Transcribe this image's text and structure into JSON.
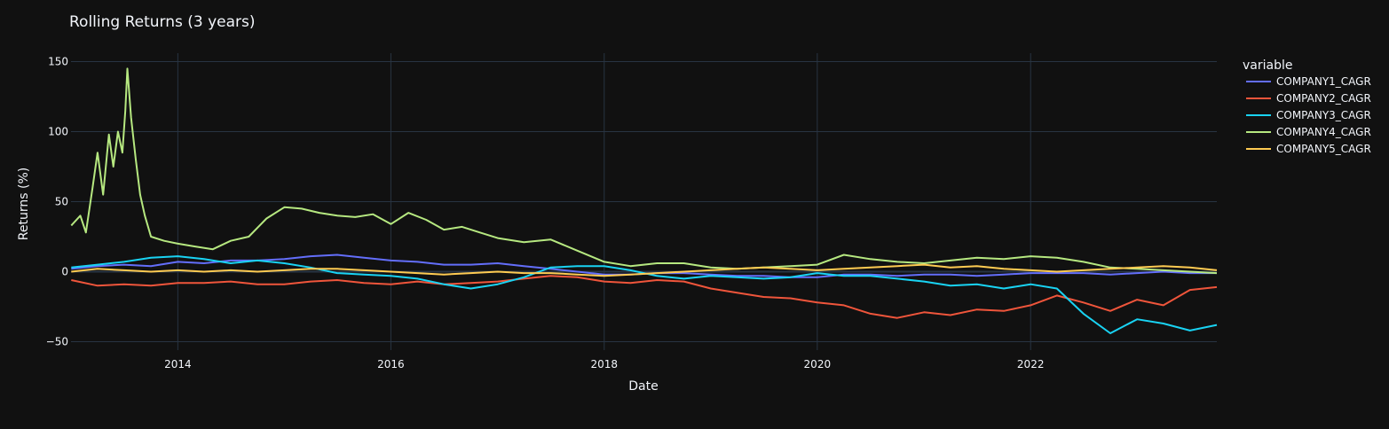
{
  "chart_data": {
    "type": "line",
    "title": "Rolling Returns (3 years)",
    "xlabel": "Date",
    "ylabel": "Returns (%)",
    "x_range": [
      "2012-12-31",
      "2023-10-01"
    ],
    "ylim": [
      -56,
      156
    ],
    "x_ticks": [
      {
        "date": "2014-01-01",
        "label": "2014"
      },
      {
        "date": "2016-01-01",
        "label": "2016"
      },
      {
        "date": "2018-01-01",
        "label": "2018"
      },
      {
        "date": "2020-01-01",
        "label": "2020"
      },
      {
        "date": "2022-01-01",
        "label": "2022"
      }
    ],
    "y_ticks": [
      {
        "value": -50,
        "label": "−50"
      },
      {
        "value": 0,
        "label": "0"
      },
      {
        "value": 50,
        "label": "50"
      },
      {
        "value": 100,
        "label": "100"
      },
      {
        "value": 150,
        "label": "150"
      }
    ],
    "grid": true,
    "legend": {
      "title": "variable",
      "placement": "right"
    },
    "background": "#111111",
    "grid_color": "#283442",
    "series": [
      {
        "name": "COMPANY1_CAGR",
        "color": "#636efa",
        "points": [
          [
            "2013-01-01",
            2
          ],
          [
            "2013-04-01",
            4
          ],
          [
            "2013-07-01",
            5
          ],
          [
            "2013-10-01",
            4
          ],
          [
            "2014-01-01",
            7
          ],
          [
            "2014-04-01",
            6
          ],
          [
            "2014-07-01",
            8
          ],
          [
            "2014-10-01",
            8
          ],
          [
            "2015-01-01",
            9
          ],
          [
            "2015-04-01",
            11
          ],
          [
            "2015-07-01",
            12
          ],
          [
            "2015-10-01",
            10
          ],
          [
            "2016-01-01",
            8
          ],
          [
            "2016-04-01",
            7
          ],
          [
            "2016-07-01",
            5
          ],
          [
            "2016-10-01",
            5
          ],
          [
            "2017-01-01",
            6
          ],
          [
            "2017-04-01",
            4
          ],
          [
            "2017-07-01",
            2
          ],
          [
            "2017-10-01",
            0
          ],
          [
            "2018-01-01",
            -2
          ],
          [
            "2018-04-01",
            -2
          ],
          [
            "2018-07-01",
            -1
          ],
          [
            "2018-10-01",
            -1
          ],
          [
            "2019-01-01",
            -2
          ],
          [
            "2019-04-01",
            -3
          ],
          [
            "2019-07-01",
            -3
          ],
          [
            "2019-10-01",
            -4
          ],
          [
            "2020-01-01",
            -4
          ],
          [
            "2020-04-01",
            -2
          ],
          [
            "2020-07-01",
            -2
          ],
          [
            "2020-10-01",
            -3
          ],
          [
            "2021-01-01",
            -2
          ],
          [
            "2021-04-01",
            -2
          ],
          [
            "2021-07-01",
            -3
          ],
          [
            "2021-10-01",
            -2
          ],
          [
            "2022-01-01",
            -1
          ],
          [
            "2022-04-01",
            -1
          ],
          [
            "2022-07-01",
            -1
          ],
          [
            "2022-10-01",
            -2
          ],
          [
            "2023-01-01",
            -1
          ],
          [
            "2023-04-01",
            0
          ],
          [
            "2023-07-01",
            -1
          ],
          [
            "2023-10-01",
            -1
          ]
        ]
      },
      {
        "name": "COMPANY2_CAGR",
        "color": "#ef553b",
        "points": [
          [
            "2013-01-01",
            -6
          ],
          [
            "2013-04-01",
            -10
          ],
          [
            "2013-07-01",
            -9
          ],
          [
            "2013-10-01",
            -10
          ],
          [
            "2014-01-01",
            -8
          ],
          [
            "2014-04-01",
            -8
          ],
          [
            "2014-07-01",
            -7
          ],
          [
            "2014-10-01",
            -9
          ],
          [
            "2015-01-01",
            -9
          ],
          [
            "2015-04-01",
            -7
          ],
          [
            "2015-07-01",
            -6
          ],
          [
            "2015-10-01",
            -8
          ],
          [
            "2016-01-01",
            -9
          ],
          [
            "2016-04-01",
            -7
          ],
          [
            "2016-07-01",
            -9
          ],
          [
            "2016-10-01",
            -8
          ],
          [
            "2017-01-01",
            -7
          ],
          [
            "2017-04-01",
            -5
          ],
          [
            "2017-07-01",
            -3
          ],
          [
            "2017-10-01",
            -4
          ],
          [
            "2018-01-01",
            -7
          ],
          [
            "2018-04-01",
            -8
          ],
          [
            "2018-07-01",
            -6
          ],
          [
            "2018-10-01",
            -7
          ],
          [
            "2019-01-01",
            -12
          ],
          [
            "2019-04-01",
            -15
          ],
          [
            "2019-07-01",
            -18
          ],
          [
            "2019-10-01",
            -19
          ],
          [
            "2020-01-01",
            -22
          ],
          [
            "2020-04-01",
            -24
          ],
          [
            "2020-07-01",
            -30
          ],
          [
            "2020-10-01",
            -33
          ],
          [
            "2021-01-01",
            -29
          ],
          [
            "2021-04-01",
            -31
          ],
          [
            "2021-07-01",
            -27
          ],
          [
            "2021-10-01",
            -28
          ],
          [
            "2022-01-01",
            -24
          ],
          [
            "2022-04-01",
            -17
          ],
          [
            "2022-07-01",
            -22
          ],
          [
            "2022-10-01",
            -28
          ],
          [
            "2023-01-01",
            -20
          ],
          [
            "2023-04-01",
            -24
          ],
          [
            "2023-07-01",
            -13
          ],
          [
            "2023-10-01",
            -11
          ]
        ]
      },
      {
        "name": "COMPANY3_CAGR",
        "color": "#19d3f3",
        "points": [
          [
            "2013-01-01",
            3
          ],
          [
            "2013-04-01",
            5
          ],
          [
            "2013-07-01",
            7
          ],
          [
            "2013-10-01",
            10
          ],
          [
            "2014-01-01",
            11
          ],
          [
            "2014-04-01",
            9
          ],
          [
            "2014-07-01",
            6
          ],
          [
            "2014-10-01",
            8
          ],
          [
            "2015-01-01",
            6
          ],
          [
            "2015-04-01",
            3
          ],
          [
            "2015-07-01",
            -1
          ],
          [
            "2015-10-01",
            -2
          ],
          [
            "2016-01-01",
            -3
          ],
          [
            "2016-04-01",
            -5
          ],
          [
            "2016-07-01",
            -9
          ],
          [
            "2016-10-01",
            -12
          ],
          [
            "2017-01-01",
            -9
          ],
          [
            "2017-04-01",
            -4
          ],
          [
            "2017-07-01",
            3
          ],
          [
            "2017-10-01",
            4
          ],
          [
            "2018-01-01",
            4
          ],
          [
            "2018-04-01",
            1
          ],
          [
            "2018-07-01",
            -3
          ],
          [
            "2018-10-01",
            -5
          ],
          [
            "2019-01-01",
            -3
          ],
          [
            "2019-04-01",
            -4
          ],
          [
            "2019-07-01",
            -5
          ],
          [
            "2019-10-01",
            -4
          ],
          [
            "2020-01-01",
            -1
          ],
          [
            "2020-04-01",
            -3
          ],
          [
            "2020-07-01",
            -3
          ],
          [
            "2020-10-01",
            -5
          ],
          [
            "2021-01-01",
            -7
          ],
          [
            "2021-04-01",
            -10
          ],
          [
            "2021-07-01",
            -9
          ],
          [
            "2021-10-01",
            -12
          ],
          [
            "2022-01-01",
            -9
          ],
          [
            "2022-04-01",
            -12
          ],
          [
            "2022-07-01",
            -30
          ],
          [
            "2022-10-01",
            -44
          ],
          [
            "2023-01-01",
            -34
          ],
          [
            "2023-04-01",
            -37
          ],
          [
            "2023-07-01",
            -42
          ],
          [
            "2023-10-01",
            -38
          ]
        ]
      },
      {
        "name": "COMPANY4_CAGR",
        "color": "#b6e880",
        "points": [
          [
            "2013-01-01",
            33
          ],
          [
            "2013-02-01",
            40
          ],
          [
            "2013-02-20",
            28
          ],
          [
            "2013-03-15",
            60
          ],
          [
            "2013-04-01",
            85
          ],
          [
            "2013-04-20",
            55
          ],
          [
            "2013-05-10",
            98
          ],
          [
            "2013-05-25",
            75
          ],
          [
            "2013-06-10",
            100
          ],
          [
            "2013-06-25",
            85
          ],
          [
            "2013-07-05",
            115
          ],
          [
            "2013-07-12",
            145
          ],
          [
            "2013-07-25",
            110
          ],
          [
            "2013-08-10",
            80
          ],
          [
            "2013-08-25",
            55
          ],
          [
            "2013-09-10",
            40
          ],
          [
            "2013-10-01",
            25
          ],
          [
            "2013-11-15",
            22
          ],
          [
            "2014-01-01",
            20
          ],
          [
            "2014-03-01",
            18
          ],
          [
            "2014-05-01",
            16
          ],
          [
            "2014-07-01",
            22
          ],
          [
            "2014-09-01",
            25
          ],
          [
            "2014-11-01",
            38
          ],
          [
            "2015-01-01",
            46
          ],
          [
            "2015-03-01",
            45
          ],
          [
            "2015-05-01",
            42
          ],
          [
            "2015-07-01",
            40
          ],
          [
            "2015-09-01",
            39
          ],
          [
            "2015-11-01",
            41
          ],
          [
            "2016-01-01",
            34
          ],
          [
            "2016-03-01",
            42
          ],
          [
            "2016-05-01",
            37
          ],
          [
            "2016-07-01",
            30
          ],
          [
            "2016-09-01",
            32
          ],
          [
            "2016-11-01",
            28
          ],
          [
            "2017-01-01",
            24
          ],
          [
            "2017-04-01",
            21
          ],
          [
            "2017-07-01",
            23
          ],
          [
            "2017-10-01",
            15
          ],
          [
            "2018-01-01",
            7
          ],
          [
            "2018-04-01",
            4
          ],
          [
            "2018-07-01",
            6
          ],
          [
            "2018-10-01",
            6
          ],
          [
            "2019-01-01",
            3
          ],
          [
            "2019-04-01",
            2
          ],
          [
            "2019-07-01",
            3
          ],
          [
            "2019-10-01",
            4
          ],
          [
            "2020-01-01",
            5
          ],
          [
            "2020-04-01",
            12
          ],
          [
            "2020-07-01",
            9
          ],
          [
            "2020-10-01",
            7
          ],
          [
            "2021-01-01",
            6
          ],
          [
            "2021-04-01",
            8
          ],
          [
            "2021-07-01",
            10
          ],
          [
            "2021-10-01",
            9
          ],
          [
            "2022-01-01",
            11
          ],
          [
            "2022-04-01",
            10
          ],
          [
            "2022-07-01",
            7
          ],
          [
            "2022-10-01",
            3
          ],
          [
            "2023-01-01",
            2
          ],
          [
            "2023-04-01",
            1
          ],
          [
            "2023-07-01",
            0
          ],
          [
            "2023-10-01",
            -1
          ]
        ]
      },
      {
        "name": "COMPANY5_CAGR",
        "color": "#fecb52",
        "points": [
          [
            "2013-01-01",
            0
          ],
          [
            "2013-04-01",
            2
          ],
          [
            "2013-07-01",
            1
          ],
          [
            "2013-10-01",
            0
          ],
          [
            "2014-01-01",
            1
          ],
          [
            "2014-04-01",
            0
          ],
          [
            "2014-07-01",
            1
          ],
          [
            "2014-10-01",
            0
          ],
          [
            "2015-01-01",
            1
          ],
          [
            "2015-04-01",
            2
          ],
          [
            "2015-07-01",
            2
          ],
          [
            "2015-10-01",
            1
          ],
          [
            "2016-01-01",
            0
          ],
          [
            "2016-04-01",
            -1
          ],
          [
            "2016-07-01",
            -2
          ],
          [
            "2016-10-01",
            -1
          ],
          [
            "2017-01-01",
            0
          ],
          [
            "2017-04-01",
            -1
          ],
          [
            "2017-07-01",
            -1
          ],
          [
            "2017-10-01",
            -2
          ],
          [
            "2018-01-01",
            -3
          ],
          [
            "2018-04-01",
            -2
          ],
          [
            "2018-07-01",
            -1
          ],
          [
            "2018-10-01",
            0
          ],
          [
            "2019-01-01",
            1
          ],
          [
            "2019-04-01",
            2
          ],
          [
            "2019-07-01",
            3
          ],
          [
            "2019-10-01",
            2
          ],
          [
            "2020-01-01",
            1
          ],
          [
            "2020-04-01",
            2
          ],
          [
            "2020-07-01",
            3
          ],
          [
            "2020-10-01",
            4
          ],
          [
            "2021-01-01",
            5
          ],
          [
            "2021-04-01",
            3
          ],
          [
            "2021-07-01",
            4
          ],
          [
            "2021-10-01",
            2
          ],
          [
            "2022-01-01",
            1
          ],
          [
            "2022-04-01",
            0
          ],
          [
            "2022-07-01",
            1
          ],
          [
            "2022-10-01",
            2
          ],
          [
            "2023-01-01",
            3
          ],
          [
            "2023-04-01",
            4
          ],
          [
            "2023-07-01",
            3
          ],
          [
            "2023-10-01",
            1
          ]
        ]
      }
    ]
  }
}
